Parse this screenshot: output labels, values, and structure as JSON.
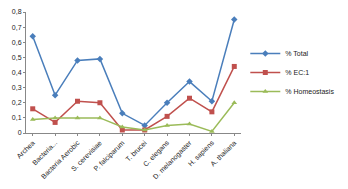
{
  "chart_data": {
    "type": "line",
    "categories": [
      "Archea",
      "Bacteria...",
      "Bacteria Aerobic",
      "S. cerevisiae",
      "P. falciparum",
      "T. brucei",
      "C. elegans",
      "D. melanogaster",
      "H. sapiens",
      "A. thaliana"
    ],
    "series": [
      {
        "name": "% Total",
        "color": "#4a7ebb",
        "marker": "diamond",
        "values": [
          0.64,
          0.25,
          0.48,
          0.49,
          0.13,
          0.05,
          0.2,
          0.34,
          0.21,
          0.75
        ]
      },
      {
        "name": "% EC:1",
        "color": "#c0504d",
        "marker": "square",
        "values": [
          0.16,
          0.07,
          0.21,
          0.2,
          0.02,
          0.02,
          0.11,
          0.23,
          0.14,
          0.44
        ]
      },
      {
        "name": "% Homeostasis",
        "color": "#9bbb59",
        "marker": "triangle",
        "values": [
          0.09,
          0.1,
          0.1,
          0.1,
          0.04,
          0.02,
          0.05,
          0.06,
          0.01,
          0.2
        ]
      }
    ],
    "ylim": [
      0,
      0.8
    ],
    "yticks": [
      0,
      {
        "value": 0.1,
        "label": "0,1"
      },
      {
        "value": 0.2,
        "label": "0,2"
      },
      {
        "value": 0.3,
        "label": "0,3"
      },
      {
        "value": 0.4,
        "label": "0,4"
      },
      {
        "value": 0.5,
        "label": "0,5"
      },
      {
        "value": 0.6,
        "label": "0,6"
      },
      {
        "value": 0.7,
        "label": "0,7"
      },
      {
        "value": 0.8,
        "label": "0,8"
      }
    ],
    "grid": false,
    "legend": "right"
  }
}
